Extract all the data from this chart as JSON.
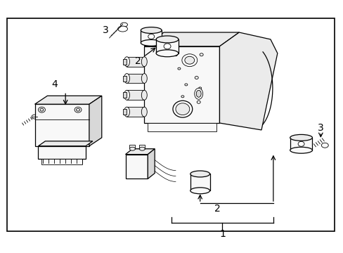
{
  "bg_color": "#ffffff",
  "border_color": "#000000",
  "label_1": "1",
  "label_2": "2",
  "label_3": "3",
  "label_4": "4",
  "fig_width": 4.89,
  "fig_height": 3.6,
  "dpi": 100,
  "border": [
    8,
    25,
    470,
    305
  ],
  "component_colors": {
    "face_light": "#f8f8f8",
    "face_mid": "#ebebeb",
    "face_dark": "#d8d8d8",
    "white": "#ffffff",
    "outline": "#000000"
  }
}
